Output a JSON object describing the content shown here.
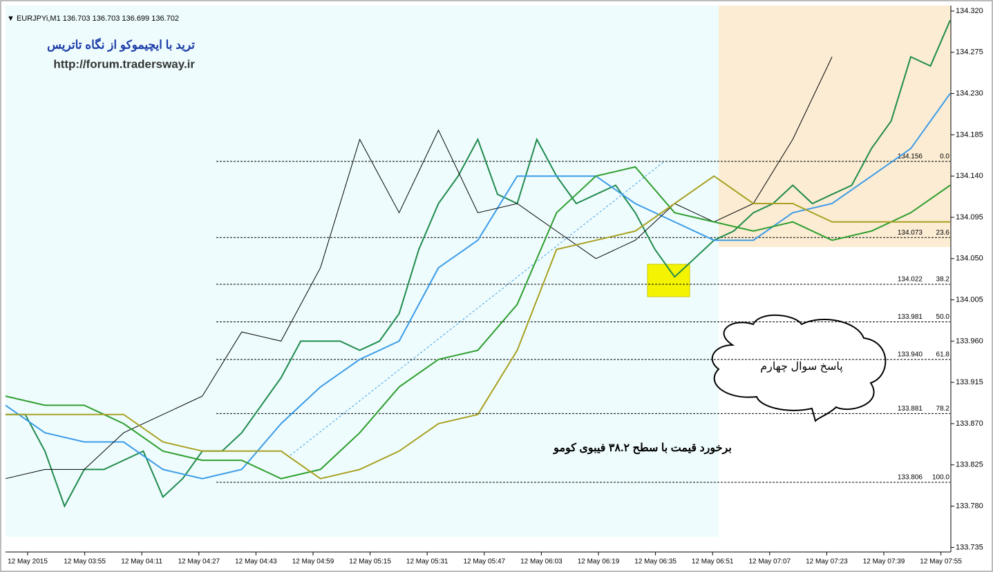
{
  "chart_data": {
    "type": "line",
    "header": "▼ EURJPYi,M1  136.703 136.703 136.699 136.702",
    "watermark": [
      "ترید با ایچیموکو از نگاه تاتریس",
      "http://forum.tradersway.ir"
    ],
    "annotations": [
      "پاسخ سوال چهارم",
      "برخورد قیمت با سطح ۳۸.۲ فیبوی کومو"
    ],
    "time_labels": [
      "12 May 2015",
      "12 May 03:55",
      "12 May 04:11",
      "12 May 04:27",
      "12 May 04:43",
      "12 May 04:59",
      "12 May 05:15",
      "12 May 05:31",
      "12 May 05:47",
      "12 May 06:03",
      "12 May 06:19",
      "12 May 06:35",
      "12 May 06:51",
      "12 May 07:07",
      "12 May 07:23",
      "12 May 07:39",
      "12 May 07:55"
    ],
    "ylim": [
      133.73,
      134.326
    ],
    "yticks": [
      {
        "value": 134.32,
        "label": "134.320"
      },
      134.275,
      {
        "value": 134.23,
        "label": "134.230"
      },
      134.185,
      {
        "value": 134.14,
        "label": "134.140"
      },
      134.095,
      {
        "value": 134.05,
        "label": "134.050"
      },
      134.005,
      {
        "value": 133.96,
        "label": "133.960"
      },
      133.915,
      {
        "value": 133.87,
        "label": "133.870"
      },
      133.825,
      {
        "value": 133.78,
        "label": "133.780"
      },
      133.735
    ],
    "series": [
      {
        "color": "#1f8a4c",
        "values": [
          133.88,
          133.88,
          133.84,
          133.78,
          133.82,
          133.82,
          133.83,
          133.84,
          133.79,
          133.81,
          133.84,
          133.84,
          133.86,
          133.89,
          133.92,
          133.96,
          133.96,
          133.96,
          133.95,
          133.96,
          133.99,
          134.06,
          134.11,
          134.14,
          134.18,
          134.12,
          134.11,
          134.18,
          134.14,
          134.11,
          134.12,
          134.13,
          134.1,
          134.06,
          134.03,
          134.05,
          134.07,
          134.08,
          134.1,
          134.11,
          134.13,
          134.11,
          134.12,
          134.13,
          134.17,
          134.2,
          134.27,
          134.26,
          134.31
        ]
      },
      {
        "color": "#3b9be8",
        "values": [
          133.89,
          133.86,
          133.85,
          133.85,
          133.82,
          133.81,
          133.82,
          133.87,
          133.91,
          133.94,
          133.96,
          134.04,
          134.07,
          134.14,
          134.14,
          134.14,
          134.11,
          134.09,
          134.07,
          134.07,
          134.1,
          134.11,
          134.14,
          134.17,
          134.23
        ]
      },
      {
        "color": "#000000",
        "values": [
          133.81,
          133.82,
          133.82,
          133.86,
          133.88,
          133.9,
          133.97,
          133.96,
          134.04,
          134.18,
          134.1,
          134.19,
          134.1,
          134.11,
          134.08,
          134.05,
          134.07,
          134.11,
          134.09,
          134.11,
          134.18,
          134.27,
          null,
          null,
          null
        ]
      },
      {
        "color": "#2e9e2e",
        "values": [
          133.9,
          133.89,
          133.89,
          133.87,
          133.84,
          133.83,
          133.83,
          133.81,
          133.82,
          133.86,
          133.91,
          133.94,
          133.95,
          134.0,
          134.1,
          134.14,
          134.15,
          134.1,
          134.09,
          134.08,
          134.09,
          134.07,
          134.08,
          134.1,
          134.13
        ]
      },
      {
        "color": "#a8a020",
        "values": [
          133.88,
          133.88,
          133.88,
          133.88,
          133.85,
          133.84,
          133.84,
          133.84,
          133.81,
          133.82,
          133.84,
          133.87,
          133.88,
          133.95,
          134.06,
          134.07,
          134.08,
          134.11,
          134.14,
          134.11,
          134.11,
          134.09,
          134.09,
          134.09,
          134.09
        ]
      }
    ],
    "fib_levels": [
      {
        "price": 134.156,
        "ratio": "0.0"
      },
      {
        "price": 134.073,
        "ratio": "23.6"
      },
      {
        "price": 134.022,
        "ratio": "38.2"
      },
      {
        "price": 133.981,
        "ratio": "50.0"
      },
      {
        "price": 133.94,
        "price_label": "133.940",
        "ratio": "61.8"
      },
      {
        "price": 133.881,
        "ratio": "78.2"
      },
      {
        "price": 133.806,
        "ratio": "100.0"
      }
    ]
  }
}
